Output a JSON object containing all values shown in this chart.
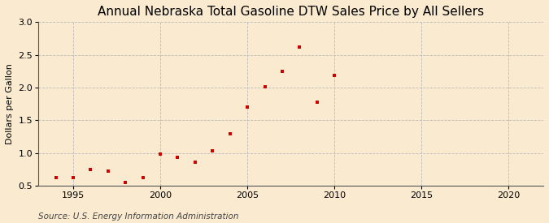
{
  "title": "Annual Nebraska Total Gasoline DTW Sales Price by All Sellers",
  "ylabel": "Dollars per Gallon",
  "source": "Source: U.S. Energy Information Administration",
  "background_color": "#faebd0",
  "marker_color": "#cc0000",
  "years": [
    1994,
    1995,
    1996,
    1997,
    1998,
    1999,
    2000,
    2001,
    2002,
    2003,
    2004,
    2005,
    2006,
    2007,
    2008,
    2009,
    2010
  ],
  "values": [
    0.62,
    0.63,
    0.75,
    0.72,
    0.55,
    0.63,
    0.98,
    0.93,
    0.86,
    1.03,
    1.3,
    1.7,
    2.01,
    2.25,
    2.62,
    1.78,
    2.19
  ],
  "xlim": [
    1993,
    2022
  ],
  "ylim": [
    0.5,
    3.0
  ],
  "xticks": [
    1995,
    2000,
    2005,
    2010,
    2015,
    2020
  ],
  "yticks": [
    0.5,
    1.0,
    1.5,
    2.0,
    2.5,
    3.0
  ],
  "grid_color": "#bbbbbb",
  "title_fontsize": 11,
  "label_fontsize": 8,
  "tick_fontsize": 8,
  "source_fontsize": 7.5
}
